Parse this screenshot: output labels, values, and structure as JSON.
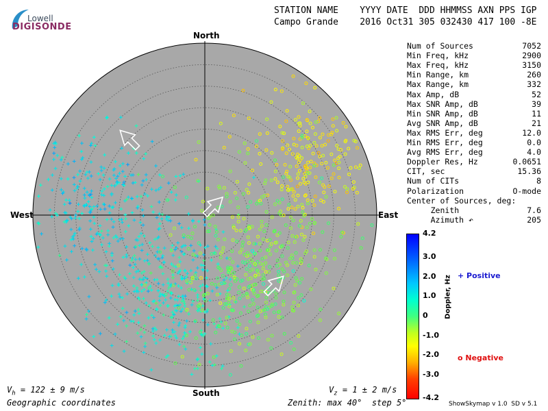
{
  "logo": {
    "top": "Lowell",
    "main": "DIGISONDE"
  },
  "header": {
    "line1": "STATION NAME    YYYY DATE  DDD HHMMSS AXN PPS IGP",
    "line2": "Campo Grande    2016 Oct31 305 032430 417 100 -8E"
  },
  "stats": [
    {
      "label": "Num of Sources",
      "value": "7052"
    },
    {
      "label": "Min Freq, kHz",
      "value": "2900"
    },
    {
      "label": "Max Freq, kHz",
      "value": "3150"
    },
    {
      "label": "Min Range, km",
      "value": "260"
    },
    {
      "label": "Max Range, km",
      "value": "332"
    },
    {
      "label": "Max Amp, dB",
      "value": "52"
    },
    {
      "label": "Max SNR Amp, dB",
      "value": "39"
    },
    {
      "label": "Min SNR Amp, dB",
      "value": "11"
    },
    {
      "label": "Avg SNR Amp, dB",
      "value": "21"
    },
    {
      "label": "Max RMS Err, deg",
      "value": "12.0"
    },
    {
      "label": "Min RMS Err, deg",
      "value": "0.0"
    },
    {
      "label": "Avg RMS Err, deg",
      "value": "4.0"
    },
    {
      "label": "Doppler Res, Hz",
      "value": "0.0651"
    },
    {
      "label": "CIT, sec",
      "value": "15.36"
    },
    {
      "label": "Num of CITs",
      "value": "8"
    },
    {
      "label": "Polarization",
      "value": "O-mode"
    },
    {
      "label": "Center of Sources, deg:",
      "value": ""
    },
    {
      "label": "     Zenith",
      "value": "7.6"
    },
    {
      "label": "     Azimuth ↶",
      "value": "205"
    }
  ],
  "directions": {
    "north": "North",
    "south": "South",
    "east": "East",
    "west": "West"
  },
  "footer": {
    "vh": "122 ± 9 m/s",
    "vz": "1 ± 2 m/s",
    "coords": "Geographic coordinates",
    "zenith": "Zenith: max 40°  step 5°",
    "version": "ShowSkymap v 1.0  SD v 5.1"
  },
  "colorbar": {
    "title": "Doppler, Hz",
    "ticks": [
      "4.2",
      "3.0",
      "2.0",
      "1.0",
      "0",
      "-1.0",
      "-2.0",
      "-3.0",
      "-4.2"
    ],
    "min": -4.2,
    "max": 4.2,
    "positive_label": "+ Positive",
    "negative_label": "o Negative",
    "positive_color": "#1a1ad0",
    "negative_color": "#e01010"
  },
  "chart_data": {
    "type": "scatter",
    "projection": "polar skymap",
    "zenith_max_deg": 40,
    "zenith_step_deg": 5,
    "series": [
      {
        "name": "Positive",
        "marker": "plus",
        "doppler_range_hz": [
          0.6,
          1.6
        ]
      },
      {
        "name": "Negative",
        "marker": "circle",
        "doppler_range_hz": [
          -1.3,
          0.2
        ]
      }
    ],
    "clusters": [
      {
        "series": "Positive",
        "azimuth_deg": 235,
        "zenith_deg": 16,
        "spread_deg": 9,
        "doppler_hz": 1.3
      },
      {
        "series": "Positive",
        "azimuth_deg": 280,
        "zenith_deg": 28,
        "spread_deg": 8,
        "doppler_hz": 1.4
      },
      {
        "series": "Positive",
        "azimuth_deg": 200,
        "zenith_deg": 22,
        "spread_deg": 7,
        "doppler_hz": 1.0
      },
      {
        "series": "Negative",
        "azimuth_deg": 60,
        "zenith_deg": 28,
        "spread_deg": 7,
        "doppler_hz": -1.1
      },
      {
        "series": "Negative",
        "azimuth_deg": 110,
        "zenith_deg": 14,
        "spread_deg": 9,
        "doppler_hz": -0.3
      },
      {
        "series": "Negative",
        "azimuth_deg": 150,
        "zenith_deg": 20,
        "spread_deg": 8,
        "doppler_hz": 0.0
      }
    ],
    "velocity_arrows": [
      {
        "azimuth_deg": 315,
        "zenith_deg": 25,
        "direction_deg": 315
      },
      {
        "azimuth_deg": 45,
        "zenith_deg": 3,
        "direction_deg": 45
      },
      {
        "azimuth_deg": 135,
        "zenith_deg": 23,
        "direction_deg": 45
      }
    ]
  }
}
